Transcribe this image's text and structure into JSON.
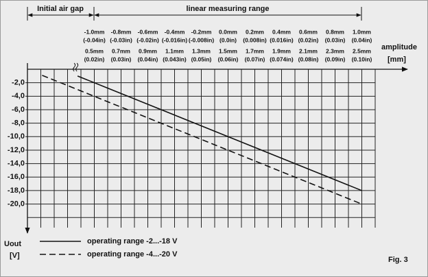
{
  "header": {
    "air_gap": "Initial air gap",
    "range": "linear measuring range"
  },
  "chart_data": {
    "type": "line",
    "x_label": "amplitude",
    "x_unit": "[mm]",
    "y_label": "Uout",
    "y_unit": "[V]",
    "xlim": [
      0,
      2.8
    ],
    "x2lim": [
      -1.5,
      1.3
    ],
    "ylim": [
      -23.5,
      0
    ],
    "xticks": [
      {
        "value": 0.5,
        "label": "0.5mm",
        "sublabel": "(0.02in)"
      },
      {
        "value": 0.7,
        "label": "0.7mm",
        "sublabel": "(0.03in)"
      },
      {
        "value": 0.9,
        "label": "0.9mm",
        "sublabel": "(0.04in)"
      },
      {
        "value": 1.1,
        "label": "1.1mm",
        "sublabel": "(0.043in)"
      },
      {
        "value": 1.3,
        "label": "1.3mm",
        "sublabel": "(0.05in)"
      },
      {
        "value": 1.5,
        "label": "1.5mm",
        "sublabel": "(0.06in)"
      },
      {
        "value": 1.7,
        "label": "1.7mm",
        "sublabel": "(0.07in)"
      },
      {
        "value": 1.9,
        "label": "1.9mm",
        "sublabel": "(0.074in)"
      },
      {
        "value": 2.1,
        "label": "2.1mm",
        "sublabel": "(0.08in)"
      },
      {
        "value": 2.3,
        "label": "2.3mm",
        "sublabel": "(0.09in)"
      },
      {
        "value": 2.5,
        "label": "2.5mm",
        "sublabel": "(0.10in)"
      }
    ],
    "x2ticks": [
      {
        "value": -1.0,
        "label": "-1.0mm",
        "sublabel": "(-0.04in)"
      },
      {
        "value": -0.8,
        "label": "-0.8mm",
        "sublabel": "(-0.03in)"
      },
      {
        "value": -0.6,
        "label": "-0.6mm",
        "sublabel": "(-0.02in)"
      },
      {
        "value": -0.4,
        "label": "-0.4mm",
        "sublabel": "(-0.016in)"
      },
      {
        "value": -0.2,
        "label": "-0.2mm",
        "sublabel": "(-0.008in)"
      },
      {
        "value": 0.0,
        "label": "0.0mm",
        "sublabel": "(0.0in)"
      },
      {
        "value": 0.2,
        "label": "0.2mm",
        "sublabel": "(0.008in)"
      },
      {
        "value": 0.4,
        "label": "0.4mm",
        "sublabel": "(0.016in)"
      },
      {
        "value": 0.6,
        "label": "0.6mm",
        "sublabel": "(0.02in)"
      },
      {
        "value": 0.8,
        "label": "0.8mm",
        "sublabel": "(0.03in)"
      },
      {
        "value": 1.0,
        "label": "1.0mm",
        "sublabel": "(0.04in)"
      }
    ],
    "xgrid": [
      0.1,
      0.2,
      0.3,
      0.4,
      0.5,
      0.6,
      0.7,
      0.8,
      0.9,
      1.0,
      1.1,
      1.2,
      1.3,
      1.4,
      1.5,
      1.6,
      1.7,
      1.8,
      1.9,
      2.0,
      2.1,
      2.2,
      2.3,
      2.4,
      2.5,
      2.6
    ],
    "yticks": [
      {
        "value": -2,
        "label": "-2,0"
      },
      {
        "value": -4,
        "label": "-4,0"
      },
      {
        "value": -6,
        "label": "-6,0"
      },
      {
        "value": -8,
        "label": "-8,0"
      },
      {
        "value": -10,
        "label": "-10,0"
      },
      {
        "value": -12,
        "label": "-12,0"
      },
      {
        "value": -14,
        "label": "-14,0"
      },
      {
        "value": -16,
        "label": "-16,0"
      },
      {
        "value": -18,
        "label": "-18,0"
      },
      {
        "value": -20,
        "label": "-20,0"
      }
    ],
    "ygrid": [
      -2,
      -4,
      -6,
      -8,
      -10,
      -12,
      -14,
      -16,
      -18,
      -20,
      -22
    ],
    "series": [
      {
        "name": "operating range -2...-18 V",
        "color": "#111111",
        "dash": "solid",
        "x": [
          0.375,
          2.5
        ],
        "values": [
          -1,
          -18
        ]
      },
      {
        "name": "operating range -4...-20 V",
        "color": "#111111",
        "dash": "dashed",
        "x": [
          0.11,
          2.5
        ],
        "values": [
          -0.9,
          -20
        ]
      }
    ],
    "figure_label": "Fig. 3"
  }
}
